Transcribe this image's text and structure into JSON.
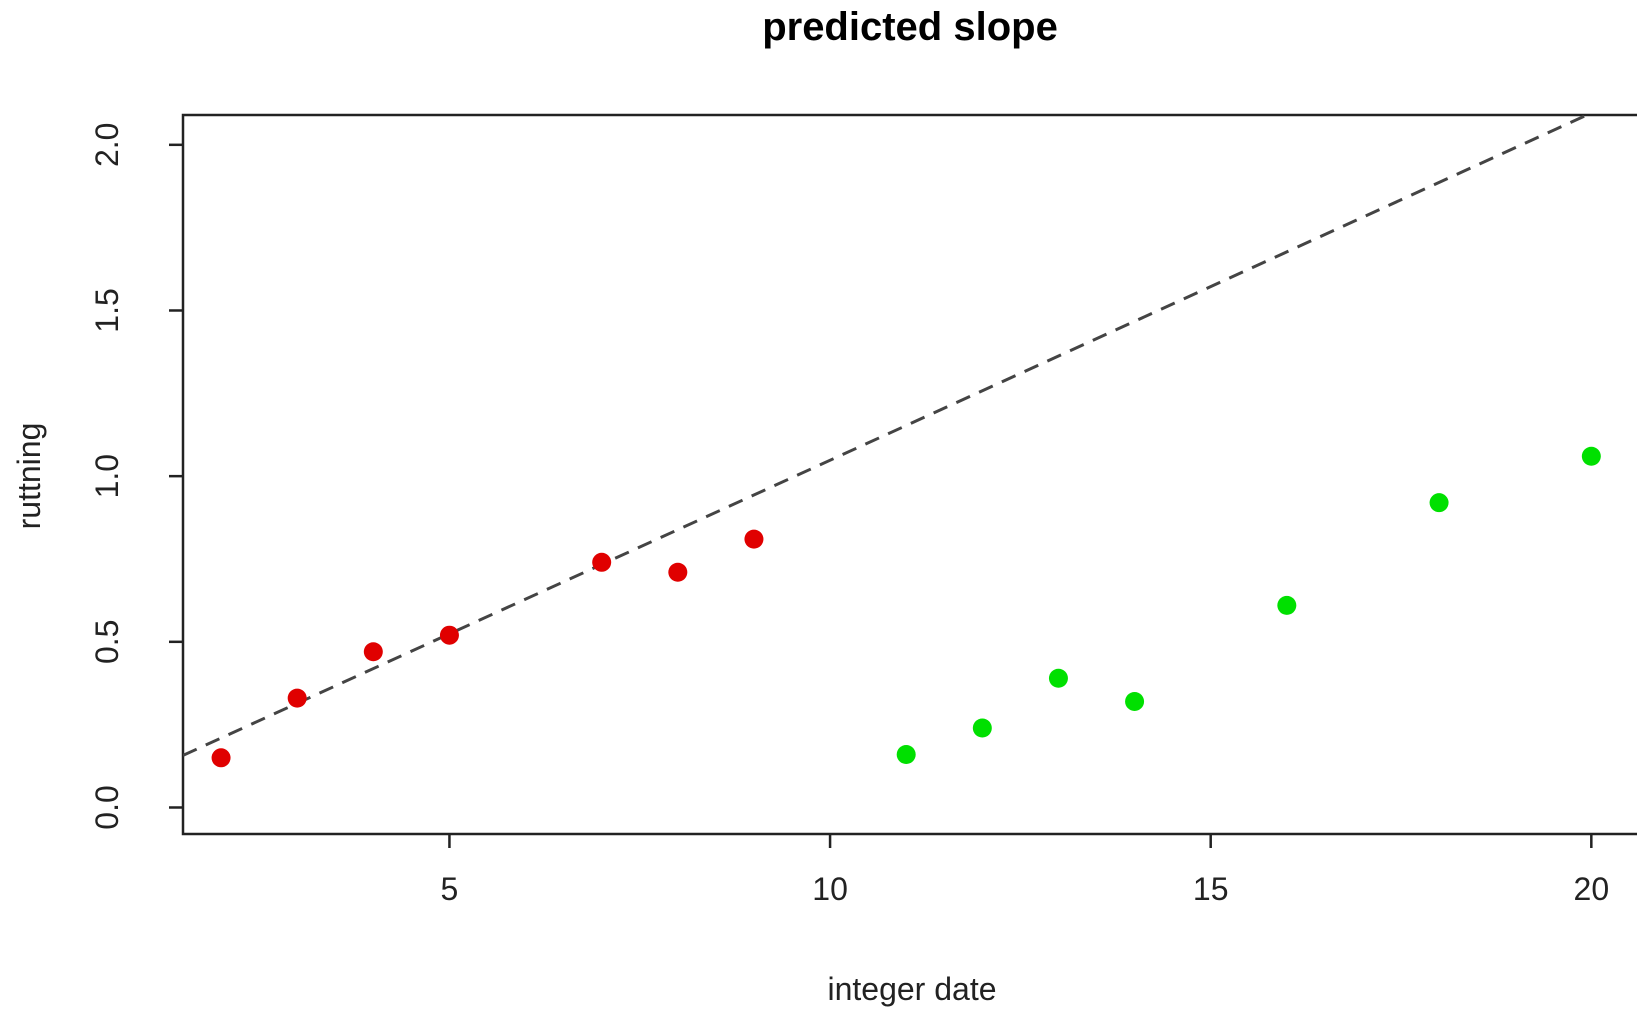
{
  "chart_data": {
    "type": "scatter",
    "title": "predicted slope",
    "xlabel": "integer date",
    "ylabel": "ruttning",
    "xlim": [
      1.5,
      20.6
    ],
    "ylim": [
      -0.08,
      2.09
    ],
    "x_ticks": [
      5,
      10,
      15,
      20
    ],
    "y_ticks": [
      0.0,
      0.5,
      1.0,
      1.5,
      2.0
    ],
    "x_tick_labels": [
      "5",
      "10",
      "15",
      "20"
    ],
    "y_tick_labels": [
      "0.0",
      "0.5",
      "1.0",
      "1.5",
      "2.0"
    ],
    "grid": false,
    "series": [
      {
        "color": "#e00000",
        "points": [
          {
            "x": 2,
            "y": 0.15
          },
          {
            "x": 3,
            "y": 0.33
          },
          {
            "x": 4,
            "y": 0.47
          },
          {
            "x": 5,
            "y": 0.52
          },
          {
            "x": 7,
            "y": 0.74
          },
          {
            "x": 8,
            "y": 0.71
          },
          {
            "x": 9,
            "y": 0.81
          }
        ]
      },
      {
        "color": "#00e000",
        "points": [
          {
            "x": 11,
            "y": 0.16
          },
          {
            "x": 12,
            "y": 0.24
          },
          {
            "x": 13,
            "y": 0.39
          },
          {
            "x": 14,
            "y": 0.32
          },
          {
            "x": 16,
            "y": 0.61
          },
          {
            "x": 18,
            "y": 0.92
          },
          {
            "x": 20,
            "y": 1.06
          }
        ]
      }
    ],
    "reference_line": {
      "style": "dashed",
      "color": "#444444",
      "intercept": 0.0,
      "slope": 0.1048
    }
  }
}
